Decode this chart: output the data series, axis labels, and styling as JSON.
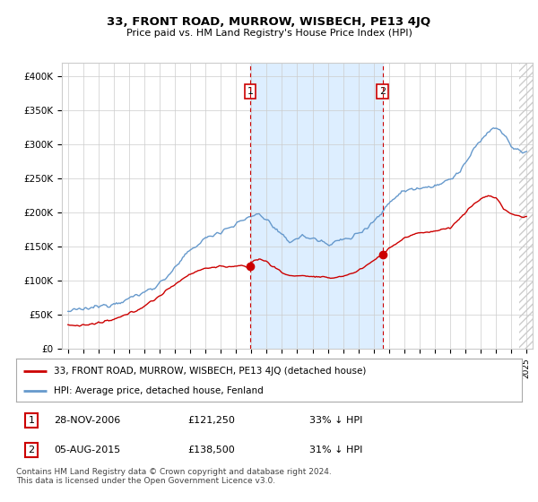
{
  "title": "33, FRONT ROAD, MURROW, WISBECH, PE13 4JQ",
  "subtitle": "Price paid vs. HM Land Registry's House Price Index (HPI)",
  "ylabel_ticks": [
    "£0",
    "£50K",
    "£100K",
    "£150K",
    "£200K",
    "£250K",
    "£300K",
    "£350K",
    "£400K"
  ],
  "ytick_values": [
    0,
    50000,
    100000,
    150000,
    200000,
    250000,
    300000,
    350000,
    400000
  ],
  "ylim": [
    0,
    420000
  ],
  "sale1_date": 2006.91,
  "sale1_price": 121250,
  "sale1_label": "1",
  "sale2_date": 2015.58,
  "sale2_price": 138500,
  "sale2_label": "2",
  "legend_red_label": "33, FRONT ROAD, MURROW, WISBECH, PE13 4JQ (detached house)",
  "legend_blue_label": "HPI: Average price, detached house, Fenland",
  "footer": "Contains HM Land Registry data © Crown copyright and database right 2024.\nThis data is licensed under the Open Government Licence v3.0.",
  "red_color": "#cc0000",
  "blue_color": "#6699cc",
  "vline_color": "#cc0000",
  "grid_color": "#cccccc",
  "shade_color": "#ddeeff",
  "background_color": "#ffffff",
  "hatch_color": "#cccccc",
  "t_start": 1995.0,
  "t_end": 2025.0,
  "xlim_left": 1994.6,
  "xlim_right": 2025.4
}
